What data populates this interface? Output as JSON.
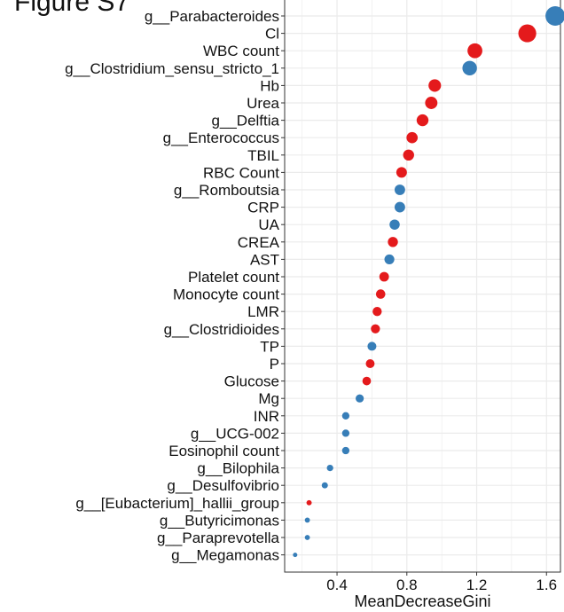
{
  "figure_label": "Figure S7",
  "colors": {
    "red": "#e41a1c",
    "blue": "#377eb8",
    "grid": "#ebebeb",
    "axis": "#333333"
  },
  "chart_data": {
    "type": "scatter",
    "title": "",
    "xlabel": "MeanDecreaseGini",
    "ylabel": "",
    "xlim": [
      0.1,
      1.68
    ],
    "xticks": [
      0.4,
      0.8,
      1.2,
      1.6
    ],
    "xtick_labels": [
      "0.4",
      "0.8",
      "1.2",
      "1.6"
    ],
    "grid": true,
    "legend": "none",
    "points": [
      {
        "label": "g__Parabacteroides",
        "value": 1.65,
        "color": "blue"
      },
      {
        "label": "Cl",
        "value": 1.49,
        "color": "red"
      },
      {
        "label": "WBC count",
        "value": 1.19,
        "color": "red"
      },
      {
        "label": "g__Clostridium_sensu_stricto_1",
        "value": 1.16,
        "color": "blue"
      },
      {
        "label": "Hb",
        "value": 0.96,
        "color": "red"
      },
      {
        "label": "Urea",
        "value": 0.94,
        "color": "red"
      },
      {
        "label": "g__Delftia",
        "value": 0.89,
        "color": "red"
      },
      {
        "label": "g__Enterococcus",
        "value": 0.83,
        "color": "red"
      },
      {
        "label": "TBIL",
        "value": 0.81,
        "color": "red"
      },
      {
        "label": "RBC Count",
        "value": 0.77,
        "color": "red"
      },
      {
        "label": "g__Romboutsia",
        "value": 0.76,
        "color": "blue"
      },
      {
        "label": "CRP",
        "value": 0.76,
        "color": "blue"
      },
      {
        "label": "UA",
        "value": 0.73,
        "color": "blue"
      },
      {
        "label": "CREA",
        "value": 0.72,
        "color": "red"
      },
      {
        "label": "AST",
        "value": 0.7,
        "color": "blue"
      },
      {
        "label": "Platelet count",
        "value": 0.67,
        "color": "red"
      },
      {
        "label": "Monocyte count",
        "value": 0.65,
        "color": "red"
      },
      {
        "label": "LMR",
        "value": 0.63,
        "color": "red"
      },
      {
        "label": "g__Clostridioides",
        "value": 0.62,
        "color": "red"
      },
      {
        "label": "TP",
        "value": 0.6,
        "color": "blue"
      },
      {
        "label": "P",
        "value": 0.59,
        "color": "red"
      },
      {
        "label": "Glucose",
        "value": 0.57,
        "color": "red"
      },
      {
        "label": "Mg",
        "value": 0.53,
        "color": "blue"
      },
      {
        "label": "INR",
        "value": 0.45,
        "color": "blue"
      },
      {
        "label": "g__UCG-002",
        "value": 0.45,
        "color": "blue"
      },
      {
        "label": "Eosinophil count",
        "value": 0.45,
        "color": "blue"
      },
      {
        "label": "g__Bilophila",
        "value": 0.36,
        "color": "blue"
      },
      {
        "label": "g__Desulfovibrio",
        "value": 0.33,
        "color": "blue"
      },
      {
        "label": "g__[Eubacterium]_hallii_group",
        "value": 0.24,
        "color": "red"
      },
      {
        "label": "g__Butyricimonas",
        "value": 0.23,
        "color": "blue"
      },
      {
        "label": "g__Paraprevotella",
        "value": 0.23,
        "color": "blue"
      },
      {
        "label": "g__Megamonas",
        "value": 0.16,
        "color": "blue"
      }
    ]
  }
}
